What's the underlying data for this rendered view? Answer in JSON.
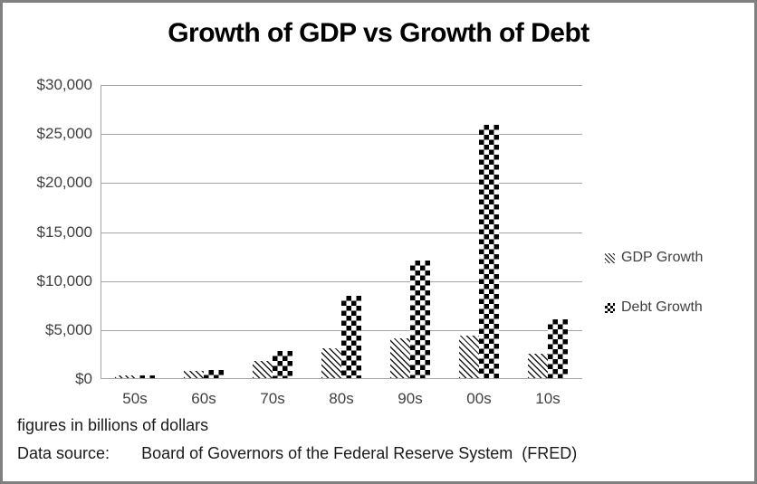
{
  "window": {
    "background_color": "#ffffff",
    "border_color": "#808080"
  },
  "chart_data": {
    "type": "bar",
    "title": "Growth of GDP vs Growth of Debt",
    "categories": [
      "50s",
      "60s",
      "70s",
      "80s",
      "90s",
      "00s",
      "10s"
    ],
    "series": [
      {
        "name": "GDP Growth",
        "pattern": "diagonal-hatch",
        "fill_colors": [
          "#1a1a1a",
          "#ffffff"
        ],
        "values": [
          250,
          750,
          1750,
          3000,
          4100,
          4300,
          2500
        ]
      },
      {
        "name": "Debt Growth",
        "pattern": "checkerboard",
        "fill_colors": [
          "#000000",
          "#ffffff"
        ],
        "values": [
          300,
          800,
          2800,
          8400,
          12000,
          25800,
          6000
        ]
      }
    ],
    "xlabel": "",
    "ylabel": "",
    "ylim": [
      0,
      30000
    ],
    "ytick_interval": 5000,
    "ytick_labels": [
      "$30,000",
      "$25,000",
      "$20,000",
      "$15,000",
      "$10,000",
      "$5,000",
      "$0"
    ],
    "grid": true,
    "gridline_color": "#a6a6a6",
    "legend_position": "right",
    "value_unit": "billions of dollars"
  },
  "legend": {
    "items": [
      {
        "label": "GDP Growth",
        "swatch": "diagonal-hatch"
      },
      {
        "label": "Debt Growth",
        "swatch": "checkerboard"
      }
    ]
  },
  "footer": {
    "note": "figures in billions of dollars",
    "source_label": "Data source:",
    "source_value": "Board of Governors of the Federal Reserve System  (FRED)"
  }
}
